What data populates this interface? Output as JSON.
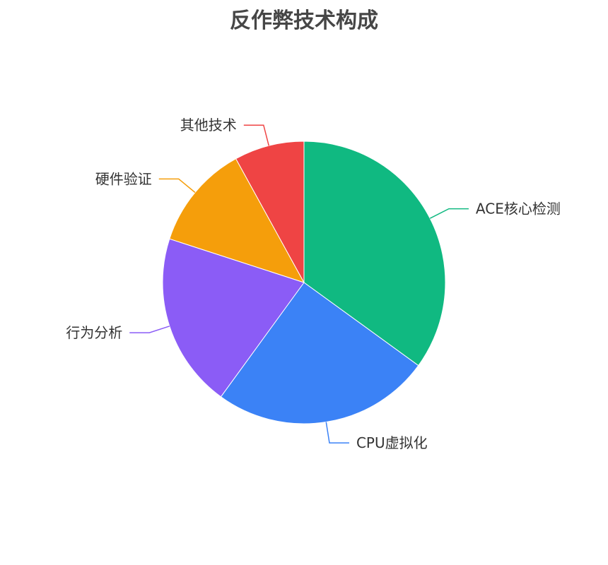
{
  "chart_data": {
    "type": "pie",
    "title": "反作弊技术构成",
    "categories": [
      "ACE核心检测",
      "CPU虚拟化",
      "行为分析",
      "硬件验证",
      "其他技术"
    ],
    "values": [
      35,
      25,
      20,
      12,
      8
    ],
    "colors": [
      "#10b981",
      "#3b82f6",
      "#8b5cf6",
      "#f59e0b",
      "#ef4444"
    ],
    "start_angle": "top",
    "direction": "clockwise",
    "legend": "none"
  }
}
